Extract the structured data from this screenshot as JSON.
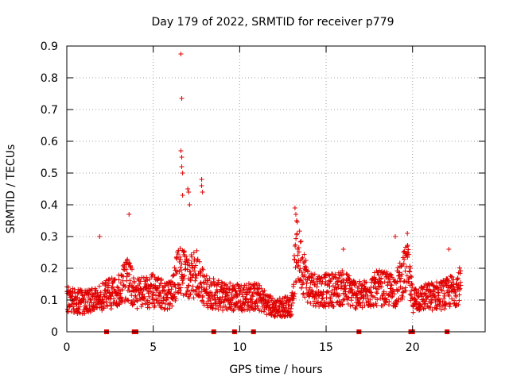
{
  "chart_data": {
    "type": "scatter",
    "title": "Day 179 of 2022, SRMTID for receiver p779",
    "xlabel": "GPS time / hours",
    "ylabel": "SRMTID / TECUs",
    "xlim": [
      0,
      24.2
    ],
    "ylim": [
      0,
      0.9
    ],
    "x_ticks": [
      0,
      5,
      10,
      15,
      20
    ],
    "x_tick_labels": [
      "0",
      "5",
      "10",
      "15",
      "20"
    ],
    "y_ticks": [
      0,
      0.1,
      0.2,
      0.3,
      0.4,
      0.5,
      0.6,
      0.7,
      0.8,
      0.9
    ],
    "y_tick_labels": [
      "0",
      "0.1",
      "0.2",
      "0.3",
      "0.4",
      "0.5",
      "0.6",
      "0.7",
      "0.8",
      "0.9"
    ],
    "grid": true,
    "marker": "+",
    "color": "#e00000",
    "notable_points": [
      {
        "x": 6.6,
        "y": 0.875
      },
      {
        "x": 6.65,
        "y": 0.735
      },
      {
        "x": 6.6,
        "y": 0.57
      },
      {
        "x": 6.65,
        "y": 0.55
      },
      {
        "x": 6.65,
        "y": 0.52
      },
      {
        "x": 6.7,
        "y": 0.5
      },
      {
        "x": 7.0,
        "y": 0.45
      },
      {
        "x": 7.05,
        "y": 0.44
      },
      {
        "x": 7.8,
        "y": 0.48
      },
      {
        "x": 7.8,
        "y": 0.46
      },
      {
        "x": 7.85,
        "y": 0.44
      },
      {
        "x": 7.1,
        "y": 0.4
      },
      {
        "x": 6.7,
        "y": 0.43
      },
      {
        "x": 3.6,
        "y": 0.37
      },
      {
        "x": 13.2,
        "y": 0.39
      },
      {
        "x": 13.25,
        "y": 0.37
      },
      {
        "x": 13.3,
        "y": 0.35
      },
      {
        "x": 1.9,
        "y": 0.3
      },
      {
        "x": 19.7,
        "y": 0.31
      },
      {
        "x": 19.0,
        "y": 0.3
      },
      {
        "x": 22.1,
        "y": 0.26
      },
      {
        "x": 16.0,
        "y": 0.26
      }
    ],
    "envelope": {
      "x": [
        0,
        1,
        2,
        3,
        3.5,
        4,
        5,
        6,
        6.5,
        7,
        7.5,
        8,
        9,
        10,
        11,
        12,
        13,
        13.3,
        14,
        15,
        16,
        17,
        18,
        19,
        19.7,
        20,
        21,
        22,
        22.8
      ],
      "y": [
        0.11,
        0.1,
        0.12,
        0.14,
        0.18,
        0.13,
        0.14,
        0.12,
        0.22,
        0.18,
        0.2,
        0.14,
        0.12,
        0.12,
        0.12,
        0.08,
        0.09,
        0.28,
        0.15,
        0.14,
        0.15,
        0.12,
        0.15,
        0.14,
        0.22,
        0.11,
        0.12,
        0.13,
        0.16
      ]
    },
    "zero_markers_x": [
      2.3,
      3.9,
      4.0,
      8.5,
      9.7,
      10.8,
      16.9,
      19.9,
      20.0,
      22.0
    ]
  }
}
